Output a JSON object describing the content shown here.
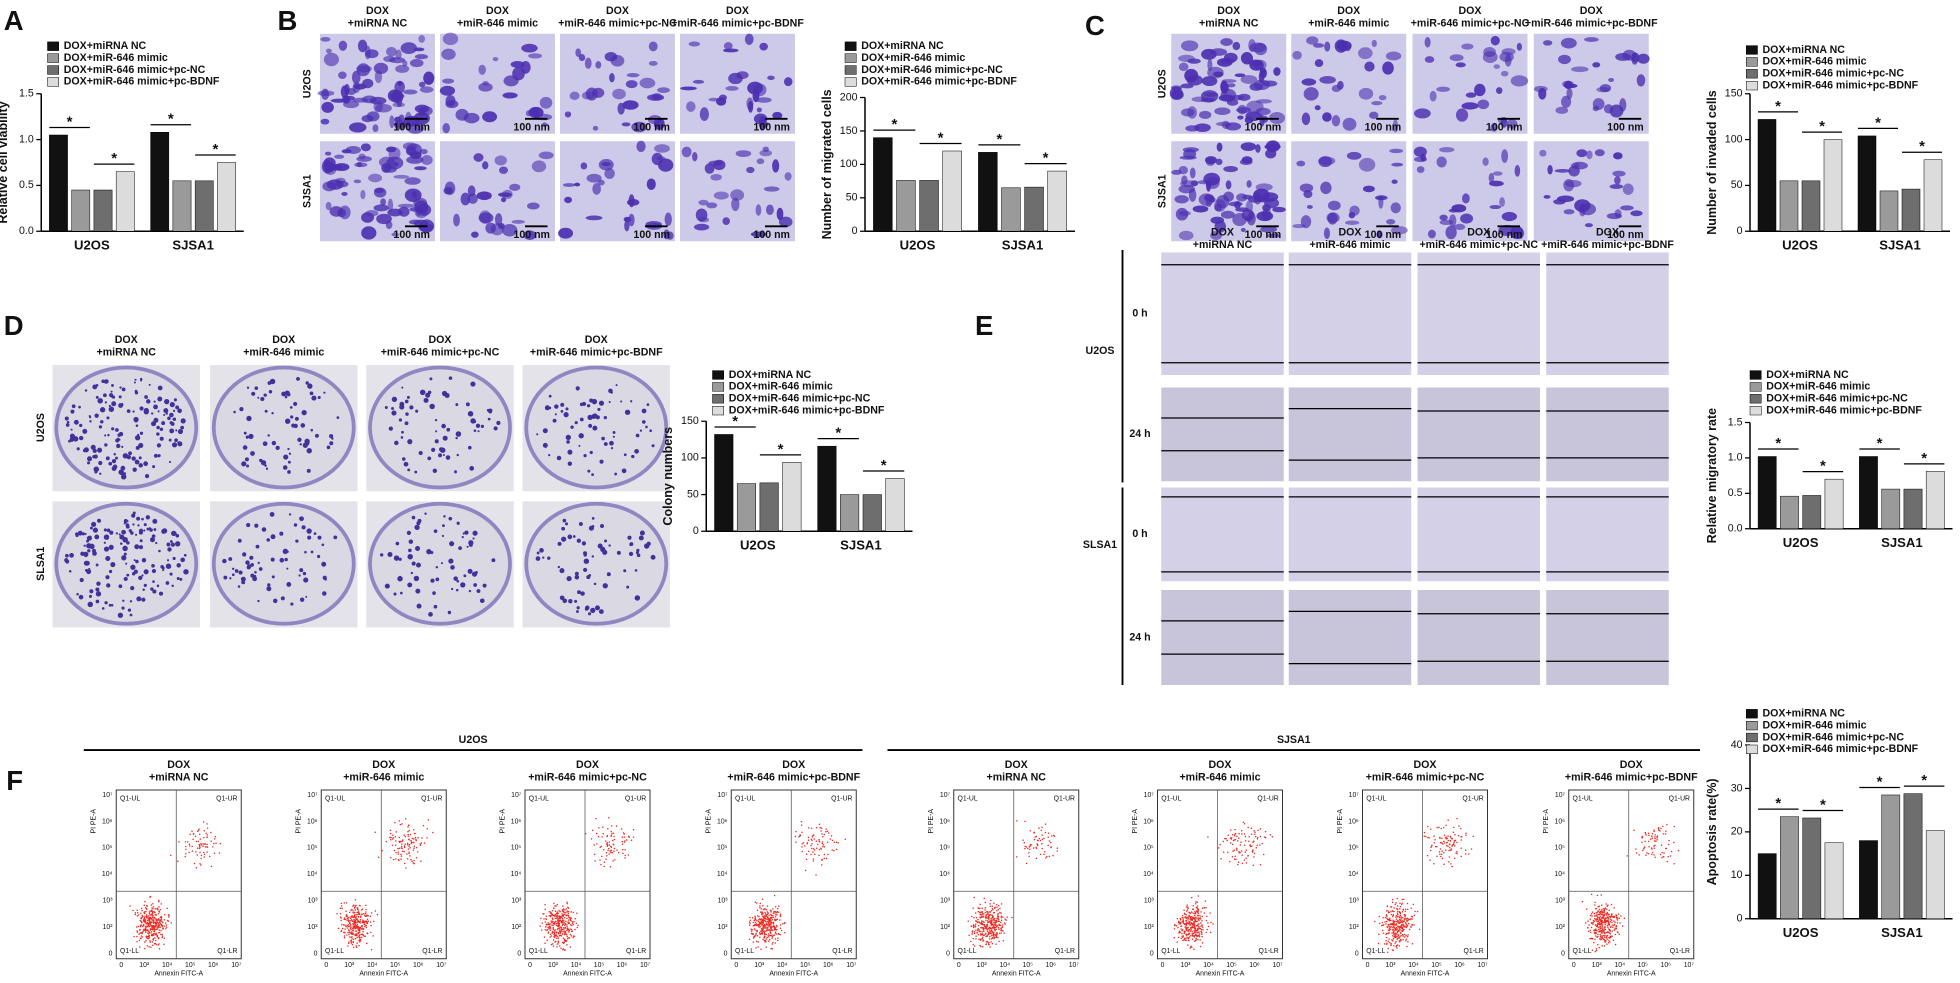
{
  "panels": [
    "A",
    "B",
    "C",
    "D",
    "E",
    "F"
  ],
  "conditions": [
    [
      "DOX",
      "+miRNA NC"
    ],
    [
      "DOX",
      "+miR-646 mimic"
    ],
    [
      "DOX",
      "+miR-646 mimic+pc-NC"
    ],
    [
      "DOX",
      "+miR-646 mimic+pc-BDNF"
    ]
  ],
  "micrographs": {
    "B": {
      "rows": [
        "U2OS",
        "SJSA1"
      ],
      "scale_bar": "100 nm"
    },
    "C": {
      "rows": [
        "U2OS",
        "SJSA1"
      ],
      "scale_bar": "100 nm"
    },
    "D": {
      "rows": [
        "U2OS",
        "SLSA1"
      ]
    },
    "E": {
      "rows": [
        "U2OS",
        "SLSA1"
      ],
      "times": [
        "0 h",
        "24 h"
      ]
    },
    "F": {
      "groups": [
        "U2OS",
        "SJSA1"
      ],
      "quadrants": [
        "Q1-UL",
        "Q1-UR",
        "Q1-LL",
        "Q1-LR"
      ],
      "xlabel": "Annexin FITC-A",
      "ylabel": "PI PE-A",
      "xticks": [
        "0",
        "10³",
        "10⁴",
        "10⁵",
        "10⁶",
        "10⁷"
      ],
      "yticks": [
        "0",
        "10²",
        "10³",
        "10⁴",
        "10⁵",
        "10⁶",
        "10⁷"
      ]
    }
  },
  "chart_data": [
    {
      "type": "bar",
      "ylabel": "Relative cell viability",
      "categories": [
        "U2OS",
        "SJSA1"
      ],
      "ylim": [
        0,
        1.5
      ],
      "yticks": [
        {
          "value": 0,
          "label": "0.0"
        },
        0.5,
        {
          "value": 1,
          "label": "1.0"
        },
        {
          "value": 1.5,
          "label": "1.5"
        }
      ],
      "series": [
        {
          "name": "DOX+miRNA NC",
          "color": "#111111",
          "values": [
            1.05,
            1.08
          ]
        },
        {
          "name": "DOX+miR-646 mimic",
          "color": "#9a9a9a",
          "values": [
            0.45,
            0.55
          ]
        },
        {
          "name": "DOX+miR-646 mimic+pc-NC",
          "color": "#6e6e6e",
          "values": [
            0.45,
            0.55
          ]
        },
        {
          "name": "DOX+miR-646 mimic+pc-BDNF",
          "color": "#dcdcdc",
          "values": [
            0.65,
            0.75
          ]
        }
      ],
      "annotations": [
        "*",
        "*",
        "*",
        "*"
      ]
    },
    {
      "type": "bar",
      "ylabel": "Number of migrated cells",
      "categories": [
        "U2OS",
        "SJSA1"
      ],
      "ylim": [
        0,
        200
      ],
      "yticks": [
        0,
        50,
        100,
        150,
        200
      ],
      "series": [
        {
          "name": "DOX+miRNA NC",
          "color": "#111111",
          "values": [
            140,
            118
          ]
        },
        {
          "name": "DOX+miR-646 mimic",
          "color": "#9a9a9a",
          "values": [
            76,
            65
          ]
        },
        {
          "name": "DOX+miR-646 mimic+pc-NC",
          "color": "#6e6e6e",
          "values": [
            76,
            66
          ]
        },
        {
          "name": "DOX+miR-646 mimic+pc-BDNF",
          "color": "#dcdcdc",
          "values": [
            120,
            90
          ]
        }
      ],
      "annotations": [
        "*",
        "*",
        "*",
        "*"
      ]
    },
    {
      "type": "bar",
      "ylabel": "Number of invaded cells",
      "categories": [
        "U2OS",
        "SJSA1"
      ],
      "ylim": [
        0,
        150
      ],
      "yticks": [
        0,
        50,
        100,
        150
      ],
      "series": [
        {
          "name": "DOX+miRNA NC",
          "color": "#111111",
          "values": [
            122,
            104
          ]
        },
        {
          "name": "DOX+miR-646 mimic",
          "color": "#9a9a9a",
          "values": [
            55,
            44
          ]
        },
        {
          "name": "DOX+miR-646 mimic+pc-NC",
          "color": "#6e6e6e",
          "values": [
            55,
            46
          ]
        },
        {
          "name": "DOX+miR-646 mimic+pc-BDNF",
          "color": "#dcdcdc",
          "values": [
            100,
            78
          ]
        }
      ],
      "annotations": [
        "*",
        "*",
        "*",
        "*"
      ]
    },
    {
      "type": "bar",
      "ylabel": "Colony numbers",
      "categories": [
        "U2OS",
        "SJSA1"
      ],
      "ylim": [
        0,
        150
      ],
      "yticks": [
        0,
        50,
        100,
        150
      ],
      "series": [
        {
          "name": "DOX+miRNA NC",
          "color": "#111111",
          "values": [
            132,
            116
          ]
        },
        {
          "name": "DOX+miR-646 mimic",
          "color": "#9a9a9a",
          "values": [
            65,
            50
          ]
        },
        {
          "name": "DOX+miR-646 mimic+pc-NC",
          "color": "#6e6e6e",
          "values": [
            66,
            50
          ]
        },
        {
          "name": "DOX+miR-646 mimic+pc-BDNF",
          "color": "#dcdcdc",
          "values": [
            94,
            72
          ]
        }
      ],
      "annotations": [
        "*",
        "*",
        "*",
        "*"
      ]
    },
    {
      "type": "bar",
      "ylabel": "Relative migratory rate",
      "categories": [
        "U2OS",
        "SJSA1"
      ],
      "ylim": [
        0,
        1.5
      ],
      "yticks": [
        {
          "value": 0,
          "label": "0.0"
        },
        0.5,
        {
          "value": 1,
          "label": "1.0"
        },
        {
          "value": 1.5,
          "label": "1.5"
        }
      ],
      "series": [
        {
          "name": "DOX+miRNA NC",
          "color": "#111111",
          "values": [
            1.02,
            1.02
          ]
        },
        {
          "name": "DOX+miR-646 mimic",
          "color": "#9a9a9a",
          "values": [
            0.46,
            0.56
          ]
        },
        {
          "name": "DOX+miR-646 mimic+pc-NC",
          "color": "#6e6e6e",
          "values": [
            0.47,
            0.56
          ]
        },
        {
          "name": "DOX+miR-646 mimic+pc-BDNF",
          "color": "#dcdcdc",
          "values": [
            0.7,
            0.81
          ]
        }
      ],
      "annotations": [
        "*",
        "*",
        "*",
        "*"
      ]
    },
    {
      "type": "bar",
      "ylabel": "Apoptosis rate(%)",
      "categories": [
        "U2OS",
        "SJSA1"
      ],
      "ylim": [
        0,
        40
      ],
      "yticks": [
        0,
        10,
        20,
        30,
        40
      ],
      "series": [
        {
          "name": "DOX+miRNA NC",
          "color": "#111111",
          "values": [
            15,
            18
          ]
        },
        {
          "name": "DOX+miR-646 mimic",
          "color": "#9a9a9a",
          "values": [
            23.5,
            28.5
          ]
        },
        {
          "name": "DOX+miR-646 mimic+pc-NC",
          "color": "#6e6e6e",
          "values": [
            23.2,
            28.8
          ]
        },
        {
          "name": "DOX+miR-646 mimic+pc-BDNF",
          "color": "#dcdcdc",
          "values": [
            17.5,
            20.3
          ]
        }
      ],
      "annotations": [
        "*",
        "*",
        "*",
        "*"
      ]
    }
  ]
}
